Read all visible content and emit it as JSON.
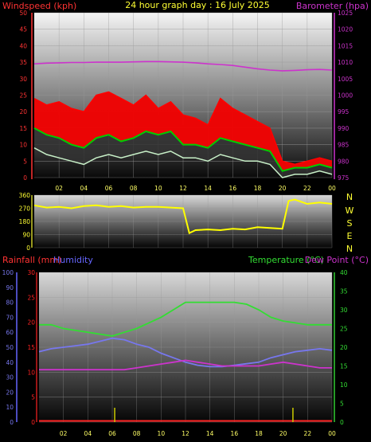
{
  "header": {
    "title": "24 hour graph day : 16 July 2025",
    "left_label": "Windspeed (kph)",
    "right_label": "Barometer (hpa)"
  },
  "direction_letters": [
    "N",
    "W",
    "S",
    "E",
    "N"
  ],
  "bottom_header": {
    "rain_label": "Rainfall (mm)",
    "humidity_label": "Humidity",
    "temp_label": "Temperature (°C)",
    "dew_label": "Dew Point (°C)"
  },
  "colors": {
    "wind_gust": "#ff0000",
    "wind_avg": "#00cc00",
    "wind_min": "#c8f0c8",
    "wind_spread": "#333333",
    "barometer": "#cc33cc",
    "direction": "#ffff00",
    "rain": "#ff2222",
    "humidity": "#7777ee",
    "temperature": "#33dd33",
    "dewpoint": "#cc33cc",
    "axis_left": "#ff3333",
    "axis_right": "#cc33cc",
    "title": "#ffff33",
    "green_axis": "#33cc33",
    "blue_axis": "#6666ff"
  },
  "chart_data": [
    {
      "id": "wind_baro",
      "type": "line",
      "x_ticks": [
        "02",
        "04",
        "06",
        "08",
        "10",
        "12",
        "14",
        "16",
        "18",
        "20",
        "22",
        "00"
      ],
      "y_left_ticks": [
        "0",
        "5",
        "10",
        "15",
        "20",
        "25",
        "30",
        "35",
        "40",
        "45",
        "50"
      ],
      "y_left_range": [
        0,
        50
      ],
      "y_right_ticks": [
        "975",
        "980",
        "985",
        "990",
        "995",
        "1000",
        "1005",
        "1010",
        "1015",
        "1020",
        "1025"
      ],
      "y_right_range": [
        975,
        1025
      ],
      "x": [
        0,
        1,
        2,
        3,
        4,
        5,
        6,
        7,
        8,
        9,
        10,
        11,
        12,
        13,
        14,
        15,
        16,
        17,
        18,
        19,
        20,
        21,
        22,
        23,
        24
      ],
      "series": [
        {
          "key": "gust",
          "values": [
            24,
            22,
            23,
            21,
            20,
            25,
            26,
            24,
            22,
            25,
            21,
            23,
            19,
            18,
            16,
            24,
            21,
            19,
            17,
            15,
            5,
            4,
            5,
            6,
            5
          ]
        },
        {
          "key": "avg",
          "values": [
            15,
            13,
            12,
            10,
            9,
            12,
            13,
            11,
            12,
            14,
            13,
            14,
            10,
            10,
            9,
            12,
            11,
            10,
            9,
            8,
            2,
            3,
            3,
            4,
            3
          ]
        },
        {
          "key": "min",
          "values": [
            9,
            7,
            6,
            5,
            4,
            6,
            7,
            6,
            7,
            8,
            7,
            8,
            6,
            6,
            5,
            7,
            6,
            5,
            5,
            4,
            0,
            1,
            1,
            2,
            1
          ]
        },
        {
          "key": "baro",
          "axis": "right",
          "values": [
            1009.5,
            1009.7,
            1009.8,
            1009.9,
            1009.9,
            1010.0,
            1010.0,
            1010.0,
            1010.1,
            1010.2,
            1010.2,
            1010.1,
            1010.0,
            1009.8,
            1009.5,
            1009.3,
            1009.0,
            1008.5,
            1008.0,
            1007.6,
            1007.4,
            1007.5,
            1007.7,
            1007.8,
            1007.6
          ]
        }
      ]
    },
    {
      "id": "direction",
      "type": "line",
      "y_ticks": [
        "360",
        "270",
        "180",
        "90",
        "0"
      ],
      "y_range": [
        0,
        360
      ],
      "x": [
        0,
        1,
        2,
        3,
        4,
        5,
        6,
        7,
        8,
        9,
        10,
        11,
        12,
        12.5,
        13,
        14,
        15,
        16,
        17,
        18,
        19,
        20,
        20.5,
        21,
        22,
        23,
        24
      ],
      "values": [
        290,
        275,
        280,
        270,
        285,
        290,
        280,
        285,
        275,
        280,
        280,
        275,
        270,
        100,
        120,
        125,
        120,
        130,
        125,
        140,
        135,
        130,
        320,
        330,
        300,
        310,
        300
      ]
    },
    {
      "id": "temp_hum_rain",
      "type": "line",
      "y_hum_ticks": [
        "0",
        "10",
        "20",
        "30",
        "40",
        "50",
        "60",
        "70",
        "80",
        "90",
        "100"
      ],
      "y_hum_range": [
        0,
        100
      ],
      "y_rain_ticks": [
        "0",
        "5",
        "10",
        "15",
        "20",
        "25",
        "30"
      ],
      "y_rain_range": [
        0,
        30
      ],
      "y_temp_ticks": [
        "0",
        "5",
        "10",
        "15",
        "20",
        "25",
        "30",
        "35",
        "40"
      ],
      "y_temp_range": [
        0,
        40
      ],
      "x": [
        0,
        1,
        2,
        3,
        4,
        5,
        6,
        7,
        8,
        9,
        10,
        11,
        12,
        13,
        14,
        15,
        16,
        17,
        18,
        19,
        20,
        21,
        22,
        23,
        24
      ],
      "series": [
        {
          "key": "temperature",
          "axis": "temp",
          "values": [
            26,
            26,
            25,
            24.5,
            24,
            23.5,
            23,
            24,
            25,
            26.5,
            28,
            30,
            32,
            32,
            32,
            32,
            32,
            31.5,
            30,
            28,
            27,
            26.5,
            26,
            26,
            26
          ]
        },
        {
          "key": "humidity",
          "axis": "hum",
          "values": [
            47,
            49,
            50,
            51,
            52,
            54,
            56,
            55,
            52,
            50,
            46,
            43,
            40,
            38,
            37,
            37,
            38,
            39,
            40,
            43,
            45,
            47,
            48,
            49,
            48
          ]
        },
        {
          "key": "dewpoint",
          "axis": "temp",
          "values": [
            14,
            14,
            14,
            14,
            14,
            14,
            14,
            14,
            14.5,
            15,
            15.5,
            16,
            16.5,
            16,
            15.5,
            15,
            15,
            15,
            15,
            15.5,
            16,
            15.5,
            15,
            14.5,
            14.5
          ]
        }
      ],
      "rain_marks": [
        6.2,
        20.8
      ]
    }
  ]
}
